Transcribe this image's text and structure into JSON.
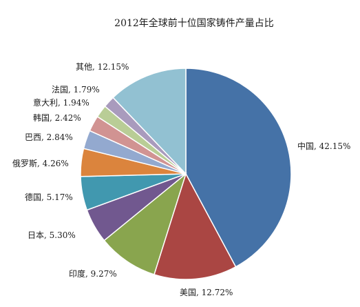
{
  "chart_data": {
    "type": "pie",
    "title": "2012年全球前十位国家铸件产量占比",
    "slices": [
      {
        "label": "中国",
        "value": 42.15,
        "display": "中国, 42.15%",
        "color": "#4572A7"
      },
      {
        "label": "美国",
        "value": 12.72,
        "display": "美国, 12.72%",
        "color": "#AA4643"
      },
      {
        "label": "印度",
        "value": 9.27,
        "display": "印度, 9.27%",
        "color": "#89A54E"
      },
      {
        "label": "日本",
        "value": 5.3,
        "display": "日本, 5.30%",
        "color": "#71588F"
      },
      {
        "label": "德国",
        "value": 5.17,
        "display": "德国, 5.17%",
        "color": "#4198AF"
      },
      {
        "label": "俄罗斯",
        "value": 4.26,
        "display": "俄罗斯, 4.26%",
        "color": "#DB843D"
      },
      {
        "label": "巴西",
        "value": 2.84,
        "display": "巴西, 2.84%",
        "color": "#93A9CF"
      },
      {
        "label": "韩国",
        "value": 2.42,
        "display": "韩国, 2.42%",
        "color": "#D19392"
      },
      {
        "label": "意大利",
        "value": 1.94,
        "display": "意大利, 1.94%",
        "color": "#B9CD96"
      },
      {
        "label": "法国",
        "value": 1.79,
        "display": "法国, 1.79%",
        "color": "#A99BBD"
      },
      {
        "label": "其他",
        "value": 12.15,
        "display": "其他, 12.15%",
        "color": "#92C1D2"
      }
    ]
  }
}
